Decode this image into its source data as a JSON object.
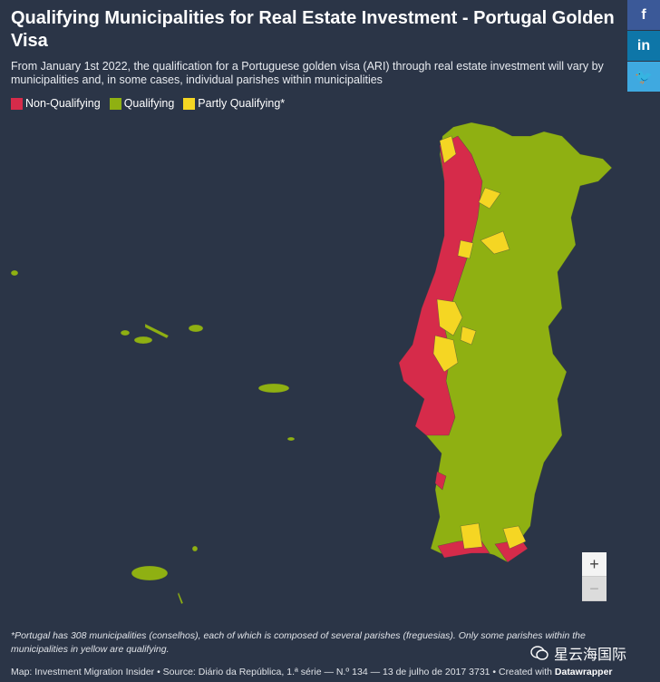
{
  "header": {
    "title": "Qualifying Municipalities for Real Estate Investment - Portugal Golden Visa",
    "subtitle": "From January 1st 2022, the qualification for a Portuguese golden visa (ARI) through real estate investment will vary by municipalities and, in some cases, individual parishes within municipalities"
  },
  "legend": [
    {
      "label": "Non-Qualifying",
      "color": "#d62b4a"
    },
    {
      "label": "Qualifying",
      "color": "#8fb012"
    },
    {
      "label": "Partly Qualifying*",
      "color": "#f5d623"
    }
  ],
  "social": [
    {
      "label": "f",
      "color": "#3b5998"
    },
    {
      "label": "in",
      "color": "#0e76a8"
    },
    {
      "label": "🐦",
      "color": "#3fa9e0"
    }
  ],
  "zoom": {
    "in": "+",
    "out": "−"
  },
  "footnote": "*Portugal has 308 municipalities (conselhos), each of which is composed of several parishes (freguesias). Only some parishes within the municipalities in yellow are qualifying.",
  "source": {
    "text": "Map: Investment Migration Insider • Source: Diário da República, 1.ª série — N.º 134 — 13 de julho de 2017 3731 • Created with ",
    "tool": "Datawrapper"
  },
  "watermark": "星云海国际"
}
